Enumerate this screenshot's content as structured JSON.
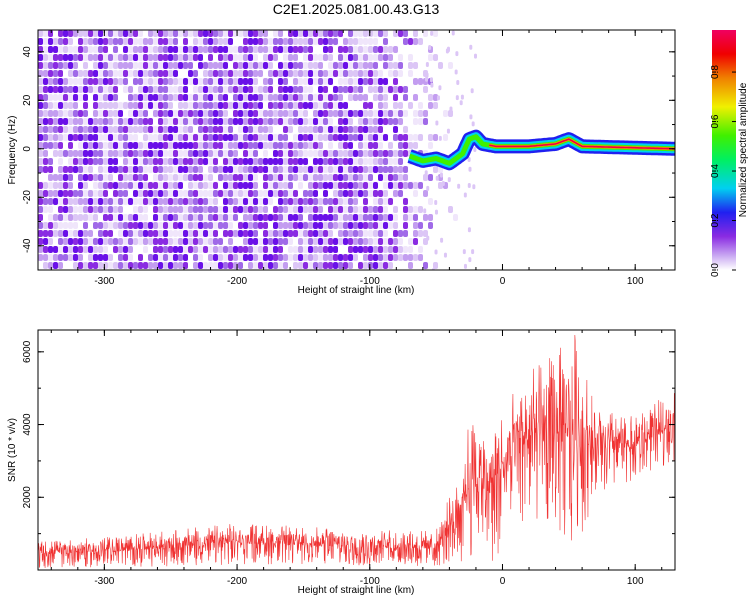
{
  "title": "C2E1.2025.081.00.43.G13",
  "chart_data": [
    {
      "type": "heatmap",
      "xlabel": "Height of straight line (km)",
      "ylabel": "Frequency (Hz)",
      "xlim": [
        -350,
        130
      ],
      "ylim": [
        -50,
        49
      ],
      "x_ticks": [
        -300,
        -200,
        -100,
        0,
        100
      ],
      "y_ticks": [
        -40,
        -20,
        0,
        20,
        40
      ],
      "colorbar": {
        "label": "Normalized spectral amplitude",
        "range": [
          0,
          0.97
        ],
        "ticks": [
          0.0,
          0.2,
          0.4,
          0.6,
          0.8
        ]
      },
      "ridge": [
        {
          "x": -70,
          "y": -3
        },
        {
          "x": -60,
          "y": -5
        },
        {
          "x": -50,
          "y": -4
        },
        {
          "x": -40,
          "y": -6
        },
        {
          "x": -30,
          "y": -2
        },
        {
          "x": -25,
          "y": 4
        },
        {
          "x": -20,
          "y": 5
        },
        {
          "x": -15,
          "y": 2
        },
        {
          "x": -5,
          "y": 1
        },
        {
          "x": 20,
          "y": 1
        },
        {
          "x": 40,
          "y": 2
        },
        {
          "x": 50,
          "y": 4
        },
        {
          "x": 60,
          "y": 1
        },
        {
          "x": 130,
          "y": 0
        }
      ],
      "grid": false
    },
    {
      "type": "line",
      "xlabel": "Height of straight line (km)",
      "ylabel": "SNR (10 * v/v)",
      "xlim": [
        -350,
        130
      ],
      "ylim": [
        0,
        6600
      ],
      "x_ticks": [
        -300,
        -200,
        -100,
        0,
        100
      ],
      "y_ticks": [
        2000,
        4000,
        6000
      ],
      "series": [
        {
          "color": "#f03232",
          "envelope": [
            {
              "x": -350,
              "lo": 50,
              "hi": 800
            },
            {
              "x": -300,
              "lo": 80,
              "hi": 900
            },
            {
              "x": -250,
              "lo": 100,
              "hi": 1100
            },
            {
              "x": -200,
              "lo": 150,
              "hi": 1300
            },
            {
              "x": -150,
              "lo": 150,
              "hi": 1200
            },
            {
              "x": -100,
              "lo": 100,
              "hi": 1100
            },
            {
              "x": -50,
              "lo": 80,
              "hi": 1100
            },
            {
              "x": -35,
              "lo": 200,
              "hi": 2500
            },
            {
              "x": -25,
              "lo": 200,
              "hi": 4200
            },
            {
              "x": -10,
              "lo": 100,
              "hi": 4000
            },
            {
              "x": 0,
              "lo": 500,
              "hi": 4500
            },
            {
              "x": 20,
              "lo": 1500,
              "hi": 5500
            },
            {
              "x": 40,
              "lo": 1000,
              "hi": 6000
            },
            {
              "x": 55,
              "lo": 500,
              "hi": 6600
            },
            {
              "x": 70,
              "lo": 2000,
              "hi": 4500
            },
            {
              "x": 100,
              "lo": 2500,
              "hi": 4200
            },
            {
              "x": 130,
              "lo": 3000,
              "hi": 5000
            }
          ]
        }
      ],
      "grid": false
    }
  ]
}
